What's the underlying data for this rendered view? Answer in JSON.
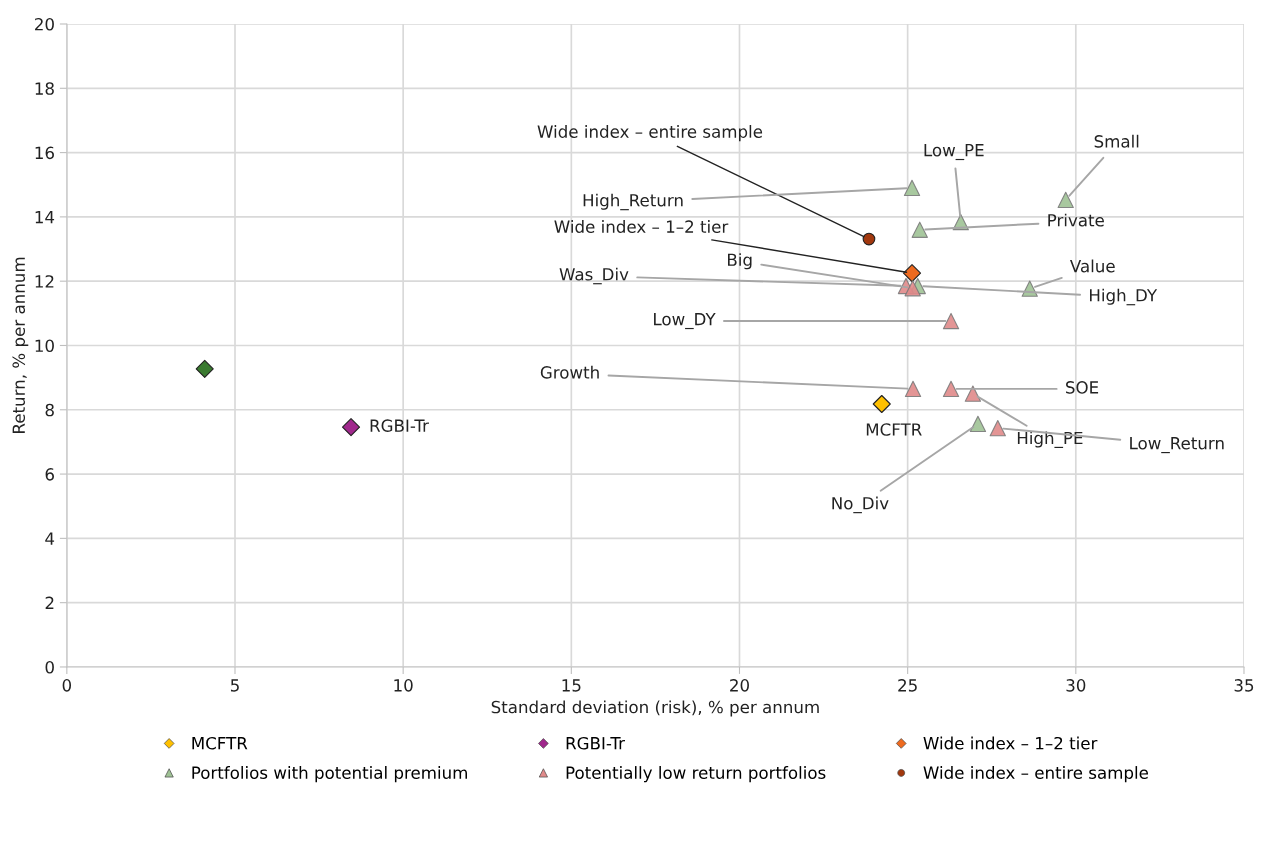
{
  "chart_data": {
    "type": "scatter",
    "xlabel": "Standard deviation (risk), % per annum",
    "ylabel": "Return, % per annum",
    "xlim": [
      0,
      35
    ],
    "xticks": [
      0,
      5,
      10,
      15,
      20,
      25,
      30,
      35
    ],
    "ylim": [
      0,
      20
    ],
    "yticks": [
      0,
      2,
      4,
      6,
      8,
      10,
      12,
      14,
      16,
      18,
      20
    ],
    "grid": true,
    "legend": "bottom",
    "series": [
      {
        "name": "MCFTR",
        "color": "#ffc000",
        "marker": "diamond",
        "x": [
          24.23
        ],
        "values": [
          8.18
        ]
      },
      {
        "color": "#3a7a30",
        "marker": "diamond",
        "x": [
          4.1
        ],
        "values": [
          9.27
        ]
      },
      {
        "name": "RGBI-Tr",
        "color": "#a0288c",
        "marker": "diamond",
        "x": [
          8.45
        ],
        "values": [
          7.46
        ]
      },
      {
        "name": "Wide index – 1–2 tier",
        "color": "#ee6a1f",
        "marker": "diamond",
        "x": [
          25.13
        ],
        "values": [
          12.25
        ]
      },
      {
        "name": "Portfolios with potential premium",
        "color": "#9fc295",
        "marker": "triangle",
        "x": [
          25.13,
          26.58,
          29.7,
          25.36,
          28.63,
          25.3,
          27.09
        ],
        "values": [
          14.9,
          13.84,
          14.53,
          13.6,
          11.77,
          11.85,
          7.56
        ]
      },
      {
        "name": "Potentially low return portfolios",
        "color": "#e08a8a",
        "marker": "triangle",
        "x": [
          24.95,
          25.15,
          26.29,
          25.16,
          26.29,
          26.94,
          27.68
        ],
        "values": [
          11.85,
          11.78,
          10.76,
          8.65,
          8.65,
          8.5,
          7.43
        ]
      },
      {
        "name": "Wide index – entire sample",
        "color": "#a2380e",
        "marker": "circle",
        "x": [
          23.85
        ],
        "values": [
          13.31
        ]
      }
    ],
    "annotations": [
      {
        "text": "MCFTR",
        "x": 24.23,
        "y": 8.18
      },
      {
        "text": "RGBI-Tr",
        "x": 8.45,
        "y": 7.46
      },
      {
        "text": "Wide index – entire sample",
        "x": 23.85,
        "y": 13.31
      },
      {
        "text": "Wide index – 1–2 tier",
        "x": 25.13,
        "y": 12.25
      },
      {
        "text": "High_Return",
        "x": 25.13,
        "y": 14.9
      },
      {
        "text": "Low_PE",
        "x": 26.58,
        "y": 13.84
      },
      {
        "text": "Small",
        "x": 29.7,
        "y": 14.53
      },
      {
        "text": "Private",
        "x": 25.36,
        "y": 13.6
      },
      {
        "text": "Value",
        "x": 28.63,
        "y": 11.77
      },
      {
        "text": "High_DY",
        "x": 25.3,
        "y": 11.85
      },
      {
        "text": "No_Div",
        "x": 27.09,
        "y": 7.56
      },
      {
        "text": "Was_Div",
        "x": 24.95,
        "y": 11.85
      },
      {
        "text": "Big",
        "x": 25.15,
        "y": 11.78
      },
      {
        "text": "Low_DY",
        "x": 26.29,
        "y": 10.76
      },
      {
        "text": "Growth",
        "x": 25.16,
        "y": 8.65
      },
      {
        "text": "SOE",
        "x": 26.29,
        "y": 8.65
      },
      {
        "text": "High_PE",
        "x": 26.94,
        "y": 8.5
      },
      {
        "text": "Low_Return",
        "x": 27.68,
        "y": 7.43
      }
    ]
  }
}
